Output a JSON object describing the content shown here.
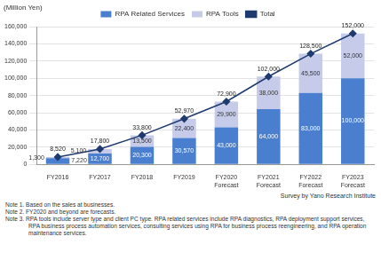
{
  "chart_data": {
    "type": "bar",
    "stacked": true,
    "data_labels": true,
    "grid": true,
    "legend": "top",
    "ylabel": "(Million Yen)",
    "categories": [
      "FY2016",
      "FY2017",
      "FY2018",
      "FY2019",
      "FY2020\nForecast",
      "FY2021\nForecast",
      "FY2022\nForecast",
      "FY2023\nForecast"
    ],
    "series": [
      {
        "name": "RPA Related Services",
        "color": "#4a7fd0",
        "values": [
          7220,
          12700,
          20300,
          30570,
          43000,
          64000,
          83000,
          100000
        ],
        "value_labels": [
          "7,220",
          "12,700",
          "20,300",
          "30,570",
          "43,000",
          "64,000",
          "83,000",
          "100,000"
        ]
      },
      {
        "name": "RPA Tools",
        "color": "#c5cbe9",
        "values": [
          1300,
          5100,
          13500,
          22400,
          29900,
          38000,
          45500,
          52000
        ],
        "value_labels": [
          "1,300",
          "5,100",
          "13,500",
          "22,400",
          "29,900",
          "38,000",
          "45,500",
          "52,000"
        ]
      },
      {
        "name": "Total",
        "type": "line",
        "marker": "diamond",
        "color": "#1f3a6e",
        "values": [
          8520,
          17800,
          33800,
          52970,
          72900,
          102000,
          128500,
          152000
        ],
        "value_labels": [
          "8,520",
          "17,800",
          "33,800",
          "52,970",
          "72,900",
          "102,000",
          "128,500",
          "152,000"
        ]
      }
    ],
    "ylim": [
      0,
      160000
    ],
    "yticks": [
      0,
      {
        "value": 20000,
        "label": "20,000"
      },
      {
        "value": 40000,
        "label": "40,000"
      },
      {
        "value": 60000,
        "label": "60,000"
      },
      {
        "value": 80000,
        "label": "80,000"
      },
      {
        "value": 100000,
        "label": "100,000"
      },
      {
        "value": 120000,
        "label": "120,000"
      },
      {
        "value": 140000,
        "label": "140,000"
      },
      {
        "value": 160000,
        "label": "160,000"
      }
    ]
  },
  "source": "Survey by Yano Research Institute",
  "notes": [
    "Note 1.  Based on the sales at businesses.",
    "Note 2.  FY2020 and beyond are forecasts.",
    "Note 3.  RPA tools include server type and client PC type. RPA related services include RPA diagnostics, RPA deployment support services, RPA business process automation services, consulting services using RPA for business process reengineering, and RPA operation maintenance services."
  ]
}
